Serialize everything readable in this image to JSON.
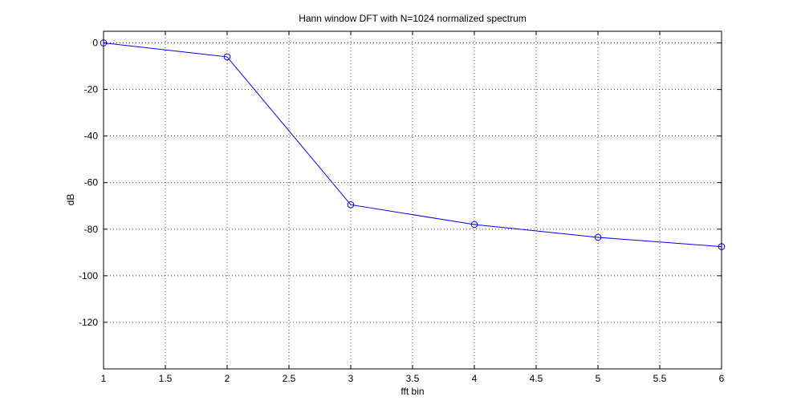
{
  "chart_data": {
    "type": "line",
    "title": "Hann window DFT with N=1024 normalized spectrum",
    "xlabel": "fft bin",
    "ylabel": "dB",
    "x": [
      1,
      2,
      3,
      4,
      5,
      6
    ],
    "series": [
      {
        "values": [
          0,
          -6,
          -69.5,
          -78,
          -83.5,
          -87.5
        ],
        "color": "#0000ff",
        "marker": "circle"
      }
    ],
    "xlim": [
      1,
      6
    ],
    "ylim": [
      -140,
      5
    ],
    "xticks": [
      1,
      1.5,
      2,
      2.5,
      3,
      3.5,
      4,
      4.5,
      5,
      5.5,
      6
    ],
    "xtick_labels": [
      "1",
      "1.5",
      "2",
      "2.5",
      "3",
      "3.5",
      "4",
      "4.5",
      "5",
      "5.5",
      "6"
    ],
    "yticks": [
      0,
      -20,
      -40,
      -60,
      -80,
      -100,
      -120
    ],
    "ytick_labels": [
      "0",
      "-20",
      "-40",
      "-60",
      "-80",
      "-100",
      "-120"
    ],
    "grid": true,
    "grid_style": "dotted",
    "legend": "none"
  }
}
